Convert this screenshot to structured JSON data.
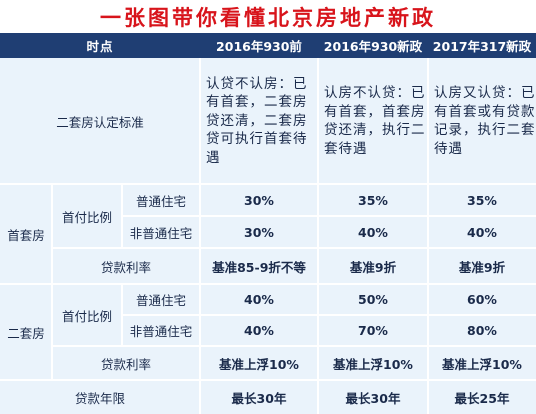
{
  "title": "一张图带你看懂北京房地产新政",
  "header": {
    "label": "时点",
    "col1": "2016年930前",
    "col2": "2016年930新政",
    "col3": "2017年317新政"
  },
  "criteria": {
    "label": "二套房认定标准",
    "col1": "认贷不认房：已有首套，二套房贷还清，二套房贷可执行首套待遇",
    "col2": "认房不认贷：已有首套，首套房贷还清，执行二套待遇",
    "col3": "认房又认贷：已有首套或有贷款记录，执行二套待遇"
  },
  "first_home": {
    "label": "首套房",
    "down_payment_label": "首付比例",
    "ordinary": {
      "label": "普通住宅",
      "col1": "30%",
      "col2": "35%",
      "col3": "35%"
    },
    "non_ordinary": {
      "label": "非普通住宅",
      "col1": "30%",
      "col2": "40%",
      "col3": "40%"
    },
    "loan_rate": {
      "label": "贷款利率",
      "col1": "基准85-9折不等",
      "col2": "基准9折",
      "col3": "基准9折"
    }
  },
  "second_home": {
    "label": "二套房",
    "down_payment_label": "首付比例",
    "ordinary": {
      "label": "普通住宅",
      "col1": "40%",
      "col2": "50%",
      "col3": "60%"
    },
    "non_ordinary": {
      "label": "非普通住宅",
      "col1": "40%",
      "col2": "70%",
      "col3": "80%"
    },
    "loan_rate": {
      "label": "贷款利率",
      "col1": "基准上浮10%",
      "col2": "基准上浮10%",
      "col3": "基准上浮10%"
    }
  },
  "loan_term": {
    "label": "贷款年限",
    "col1": "最长30年",
    "col2": "最长30年",
    "col3": "最长25年"
  },
  "colors": {
    "title": "#d8141b",
    "header_bg": "#1f3e73",
    "cell_bg": "#eaf3fb",
    "text": "#1a2a4a"
  }
}
